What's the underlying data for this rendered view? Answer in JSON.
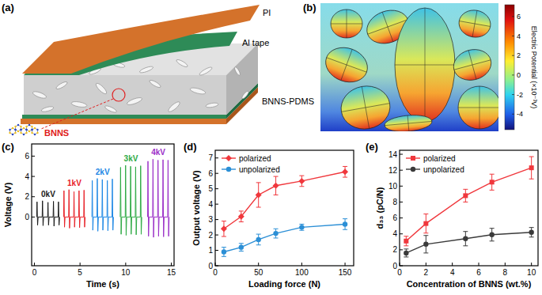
{
  "diagram": {
    "panel_a": {
      "label": "(a)",
      "layers": [
        "PI",
        "Al tape",
        "BNNS-PDMS"
      ],
      "filler": "BNNS"
    },
    "panel_b": {
      "label": "(b)",
      "colorbar": {
        "label": "Electric Potential (×10⁻³V)",
        "range": [
          -5.6,
          7.2
        ],
        "ticks": [
          -4,
          -2,
          0,
          2,
          4,
          6
        ]
      }
    }
  },
  "chart_data": [
    {
      "type": "line",
      "title": "(c)",
      "x_label": "Time (s)",
      "y_label": "Voltage (V)",
      "xlim": [
        -0.3,
        15.3
      ],
      "xticks": [
        0,
        5,
        10,
        15
      ],
      "ylim": [
        -4.8,
        7.2
      ],
      "yticks": [
        0,
        2,
        4,
        6
      ],
      "series": [
        {
          "name": "0kV",
          "color": "#1a1a1a",
          "x": [
            0.25,
            0.29,
            0.35,
            0.41,
            0.85,
            0.89,
            0.95,
            1.01,
            1.45,
            1.49,
            1.55,
            1.61,
            2.05,
            2.09,
            2.15,
            2.21,
            2.6,
            2.64,
            2.7,
            2.76
          ],
          "values": [
            0,
            1.5,
            -0.8,
            0,
            0,
            1.6,
            -0.85,
            0,
            0,
            1.45,
            -0.8,
            0,
            0,
            1.55,
            -0.9,
            0,
            0,
            1.5,
            -0.8,
            0
          ]
        },
        {
          "name": "1kV",
          "color": "#e8232a",
          "x": [
            3.2,
            3.24,
            3.3,
            3.36,
            3.75,
            3.79,
            3.85,
            3.91,
            4.3,
            4.34,
            4.4,
            4.46,
            4.85,
            4.89,
            4.95,
            5.01,
            5.4,
            5.44,
            5.5,
            5.56
          ],
          "values": [
            0,
            2.6,
            -1.0,
            0,
            0,
            2.7,
            -1.1,
            0,
            0,
            2.5,
            -1.0,
            0,
            0,
            2.6,
            -1.05,
            0,
            0,
            2.65,
            -1.0,
            0
          ]
        },
        {
          "name": "2kV",
          "color": "#1e88e5",
          "x": [
            6.3,
            6.34,
            6.4,
            6.46,
            6.85,
            6.89,
            6.95,
            7.01,
            7.4,
            7.44,
            7.5,
            7.56,
            7.95,
            7.99,
            8.05,
            8.11,
            8.5,
            8.54,
            8.6,
            8.66
          ],
          "values": [
            0,
            3.6,
            -1.3,
            0,
            0,
            3.8,
            -1.4,
            0,
            0,
            3.7,
            -1.3,
            0,
            0,
            3.6,
            -1.35,
            0,
            0,
            3.75,
            -1.3,
            0
          ]
        },
        {
          "name": "3kV",
          "color": "#2eaa44",
          "x": [
            9.4,
            9.44,
            9.5,
            9.56,
            9.95,
            9.99,
            10.05,
            10.11,
            10.5,
            10.54,
            10.6,
            10.66,
            11.05,
            11.09,
            11.15,
            11.21,
            11.6,
            11.64,
            11.7,
            11.76
          ],
          "values": [
            0,
            4.9,
            -1.7,
            0,
            0,
            5.1,
            -1.8,
            0,
            0,
            5.0,
            -1.7,
            0,
            0,
            4.95,
            -1.75,
            0,
            0,
            5.05,
            -1.7,
            0
          ]
        },
        {
          "name": "4kV",
          "color": "#9b30c8",
          "x": [
            12.4,
            12.44,
            12.5,
            12.56,
            12.95,
            12.99,
            13.05,
            13.11,
            13.5,
            13.54,
            13.6,
            13.66,
            14.05,
            14.09,
            14.15,
            14.21,
            14.6,
            14.64,
            14.7,
            14.76
          ],
          "values": [
            0,
            5.5,
            -1.9,
            0,
            0,
            5.7,
            -2.0,
            0,
            0,
            5.6,
            -1.9,
            0,
            0,
            5.65,
            -1.95,
            0,
            0,
            5.6,
            -1.9,
            0
          ]
        }
      ]
    },
    {
      "type": "line",
      "title": "(d)",
      "x_label": "Loading force (N)",
      "y_label": "Output voltage (V)",
      "x": [
        10,
        30,
        50,
        70,
        100,
        150
      ],
      "xlim": [
        0,
        160
      ],
      "xticks": [
        0,
        50,
        100,
        150
      ],
      "ylim": [
        0,
        7.5
      ],
      "yticks": [
        0,
        1,
        2,
        3,
        4,
        5,
        6,
        7
      ],
      "legend": "upper left",
      "series": [
        {
          "name": "polarized",
          "color": "#f0373c",
          "marker": "diamond",
          "values": [
            2.4,
            3.2,
            4.6,
            5.2,
            5.5,
            6.1
          ],
          "errors": [
            0.5,
            0.35,
            0.8,
            0.6,
            0.35,
            0.35
          ]
        },
        {
          "name": "unpolarized",
          "color": "#2b8fd6",
          "marker": "circle",
          "values": [
            0.9,
            1.2,
            1.7,
            2.1,
            2.5,
            2.7
          ],
          "errors": [
            0.3,
            0.25,
            0.35,
            0.3,
            0.2,
            0.35
          ]
        }
      ]
    },
    {
      "type": "line",
      "title": "(e)",
      "x_label": "Concentration of BNNS (wt.%)",
      "y_label": "d₃₃ (pC/N)",
      "x": [
        0.5,
        2,
        5,
        7,
        10
      ],
      "xlim": [
        0,
        10.5
      ],
      "xticks": [
        0,
        2,
        4,
        6,
        8,
        10
      ],
      "ylim": [
        0,
        14.5
      ],
      "yticks": [
        0,
        2,
        4,
        6,
        8,
        10,
        12,
        14
      ],
      "legend": "upper left",
      "series": [
        {
          "name": "polarized",
          "color": "#f0373c",
          "marker": "square",
          "values": [
            3.1,
            5.3,
            8.8,
            10.5,
            12.3
          ],
          "errors": [
            0.6,
            1.2,
            0.8,
            1.0,
            1.4
          ]
        },
        {
          "name": "unpolarized",
          "color": "#3a3a3a",
          "marker": "circle",
          "values": [
            1.6,
            2.7,
            3.4,
            3.9,
            4.2
          ],
          "errors": [
            0.5,
            1.1,
            0.9,
            0.8,
            0.6
          ]
        }
      ]
    }
  ]
}
